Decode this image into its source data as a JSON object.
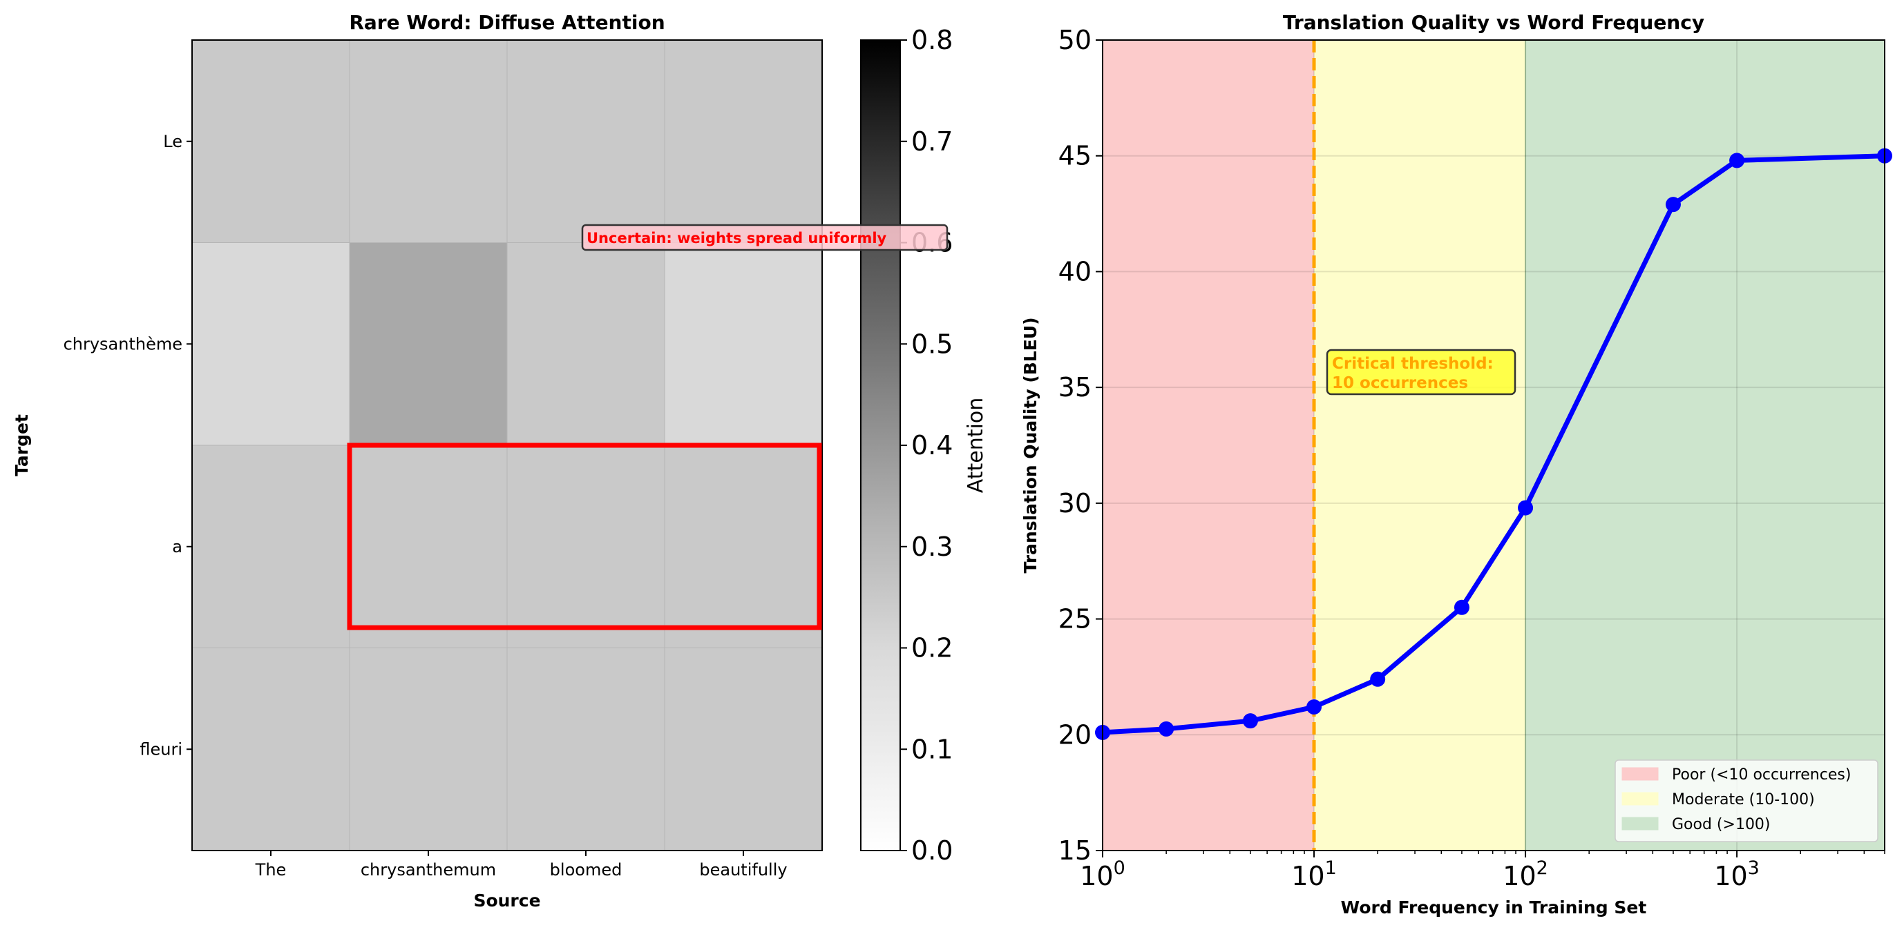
{
  "chart_data": [
    {
      "type": "heatmap",
      "title": "Rare Word: Diffuse Attention",
      "xlabel": "Source",
      "ylabel": "Target",
      "x_categories": [
        "The",
        "chrysanthemum",
        "bloomed",
        "beautifully"
      ],
      "y_categories": [
        "Le",
        "chrysanthème",
        "a",
        "fleuri"
      ],
      "values": [
        [
          0.25,
          0.25,
          0.25,
          0.25
        ],
        [
          0.2,
          0.35,
          0.25,
          0.2
        ],
        [
          0.25,
          0.25,
          0.25,
          0.25
        ],
        [
          0.25,
          0.25,
          0.25,
          0.25
        ]
      ],
      "colorbar": {
        "label": "Attention",
        "range": [
          0,
          0.8
        ],
        "ticks": [
          "0.0",
          "0.1",
          "0.2",
          "0.3",
          "0.4",
          "0.5",
          "0.6",
          "0.7",
          "0.8"
        ]
      },
      "highlight": {
        "row": 2,
        "cols": [
          1,
          3
        ],
        "color": "#ff0000"
      },
      "annotation": "Uncertain: weights spread uniformly"
    },
    {
      "type": "line",
      "title": "Translation Quality vs Word Frequency",
      "xlabel": "Word Frequency in Training Set",
      "ylabel": "Translation Quality (BLEU)",
      "xscale": "log",
      "xlim": [
        1,
        5000
      ],
      "ylim": [
        15,
        50
      ],
      "yticks": [
        "15",
        "20",
        "25",
        "30",
        "35",
        "40",
        "45",
        "50"
      ],
      "xticks": [
        {
          "base": "10",
          "exp": "0"
        },
        {
          "base": "10",
          "exp": "1"
        },
        {
          "base": "10",
          "exp": "2"
        },
        {
          "base": "10",
          "exp": "3"
        }
      ],
      "grid": true,
      "series": [
        {
          "name": "BLEU",
          "color": "#0000ff",
          "x": [
            1,
            2,
            5,
            10,
            20,
            50,
            100,
            500,
            1000,
            5000
          ],
          "y": [
            20.1,
            20.25,
            20.6,
            21.2,
            22.4,
            25.5,
            29.8,
            42.9,
            44.8,
            45.0
          ]
        }
      ],
      "regions": [
        {
          "name": "Poor (<10 occurrences)",
          "from": 1,
          "to": 10,
          "color": "#fccbcb"
        },
        {
          "name": "Moderate (10-100)",
          "from": 10,
          "to": 100,
          "color": "#fefdcb"
        },
        {
          "name": "Good (>100)",
          "from": 100,
          "to": 5000,
          "color": "#cde5cd"
        }
      ],
      "threshold": {
        "x": 10,
        "color": "#ffa500"
      },
      "annotation": [
        "Critical threshold:",
        "10 occurrences"
      ],
      "legend_position": "lower-right"
    }
  ]
}
